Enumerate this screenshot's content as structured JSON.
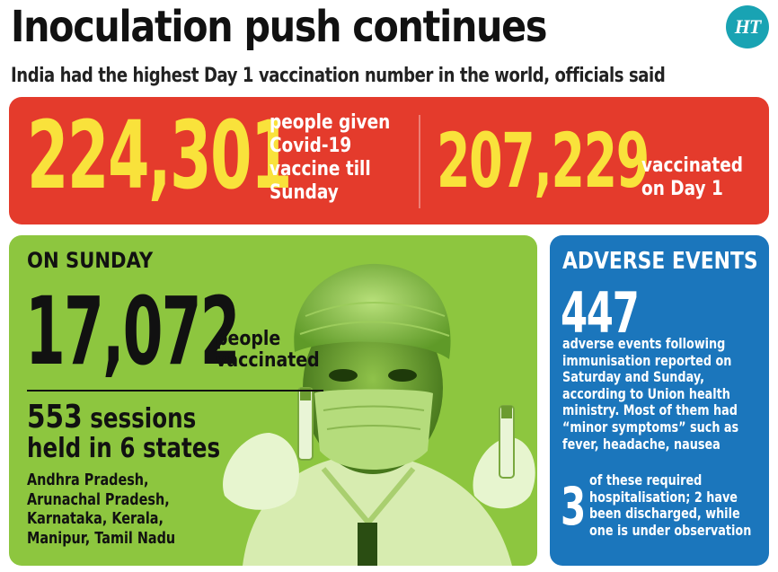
{
  "header": {
    "title": "Inoculation push continues",
    "subtitle": "India had the highest Day 1 vaccination number in the world, officials said",
    "logo_text": "HT"
  },
  "top_stats": {
    "total_number": "224,301",
    "total_label": "people given\nCovid-19\nvaccine till\nSunday",
    "day1_number": "207,229",
    "day1_label": "vaccinated\non Day 1"
  },
  "on_sunday": {
    "heading": "ON SUNDAY",
    "number": "17,072",
    "number_label": "people\nvaccinated",
    "sessions_number": "553",
    "sessions_text_1": "sessions",
    "sessions_text_2": "held in 6 states",
    "states": "Andhra Pradesh,\nArunachal Pradesh,\nKarnataka, Kerala,\nManipur, Tamil Nadu"
  },
  "adverse": {
    "heading": "ADVERSE EVENTS",
    "number": "447",
    "description": "adverse events following immunisation reported on Saturday and Sunday, according to Union health ministry. Most of them had “minor symptoms” such as fever, headache, nausea",
    "hosp_number": "3",
    "hosp_text": "of these required hospitalisation; 2 have been discharged, while one is under observation"
  },
  "colors": {
    "red_panel": "#e43b2c",
    "yellow_numbers": "#f9e23b",
    "green_panel": "#8dc63f",
    "blue_panel": "#1b76bc",
    "logo_teal": "#19a3b3"
  },
  "icons": [
    "ht-logo",
    "health-worker-photo"
  ]
}
